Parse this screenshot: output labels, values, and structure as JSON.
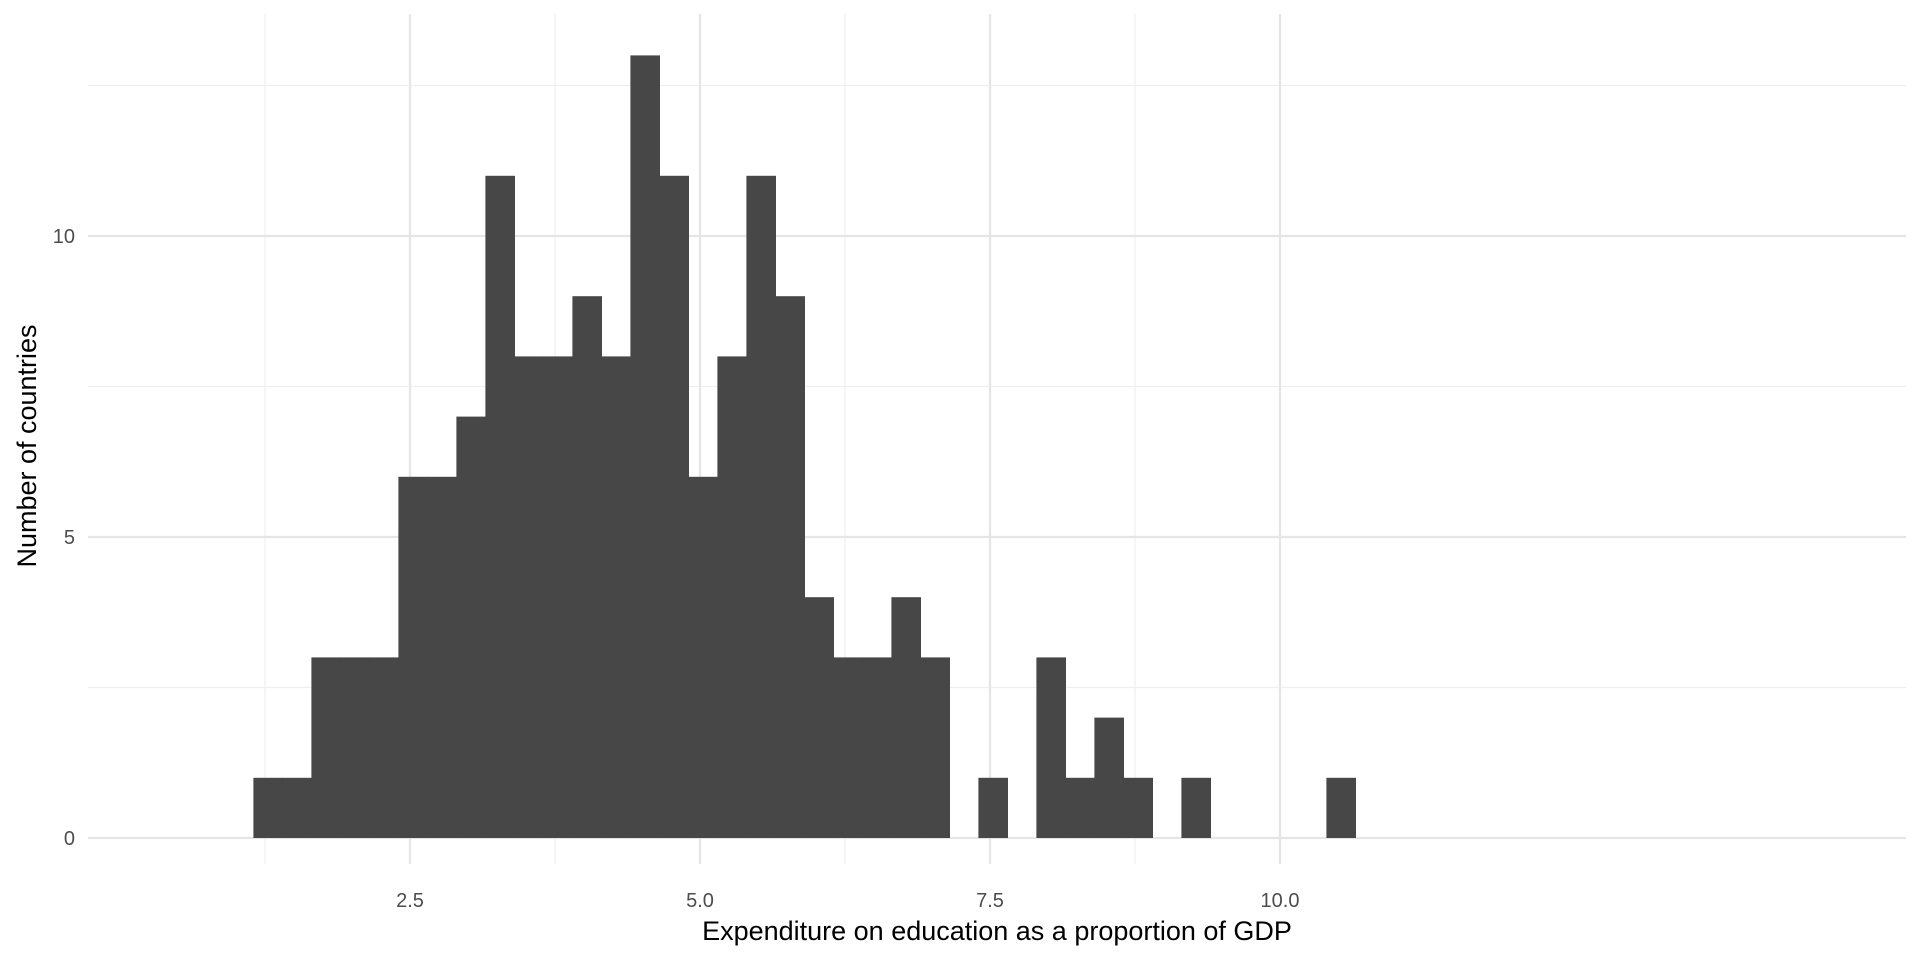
{
  "chart_data": {
    "type": "bar",
    "subtype": "histogram",
    "xlabel": "Expenditure on education as a proportion of GDP",
    "ylabel": "Number of countries",
    "xlim": [
      0.9,
      11.1
    ],
    "ylim": [
      -0.5,
      13.8
    ],
    "x_ticks": [
      2.5,
      5.0,
      7.5,
      10.0
    ],
    "x_tick_labels": [
      "2.5",
      "5.0",
      "7.5",
      "10.0"
    ],
    "y_ticks": [
      0,
      5,
      10
    ],
    "y_tick_labels": [
      "0",
      "5",
      "10"
    ],
    "grid": true,
    "bin_width": 0.25,
    "bins": [
      {
        "x0": 1.15,
        "x1": 1.4,
        "count": 1
      },
      {
        "x0": 1.4,
        "x1": 1.65,
        "count": 1
      },
      {
        "x0": 1.65,
        "x1": 1.9,
        "count": 3
      },
      {
        "x0": 1.9,
        "x1": 2.15,
        "count": 3
      },
      {
        "x0": 2.15,
        "x1": 2.4,
        "count": 3
      },
      {
        "x0": 2.4,
        "x1": 2.65,
        "count": 6
      },
      {
        "x0": 2.65,
        "x1": 2.9,
        "count": 6
      },
      {
        "x0": 2.9,
        "x1": 3.15,
        "count": 7
      },
      {
        "x0": 3.15,
        "x1": 3.4,
        "count": 11
      },
      {
        "x0": 3.4,
        "x1": 3.65,
        "count": 8
      },
      {
        "x0": 3.65,
        "x1": 3.9,
        "count": 8
      },
      {
        "x0": 3.9,
        "x1": 4.15,
        "count": 9
      },
      {
        "x0": 4.15,
        "x1": 4.4,
        "count": 8
      },
      {
        "x0": 4.4,
        "x1": 4.65,
        "count": 13
      },
      {
        "x0": 4.65,
        "x1": 4.9,
        "count": 11
      },
      {
        "x0": 4.9,
        "x1": 5.15,
        "count": 6
      },
      {
        "x0": 5.15,
        "x1": 5.4,
        "count": 8
      },
      {
        "x0": 5.4,
        "x1": 5.65,
        "count": 11
      },
      {
        "x0": 5.65,
        "x1": 5.9,
        "count": 9
      },
      {
        "x0": 5.9,
        "x1": 6.15,
        "count": 4
      },
      {
        "x0": 6.15,
        "x1": 6.4,
        "count": 3
      },
      {
        "x0": 6.4,
        "x1": 6.65,
        "count": 3
      },
      {
        "x0": 6.65,
        "x1": 6.9,
        "count": 4
      },
      {
        "x0": 6.9,
        "x1": 7.15,
        "count": 3
      },
      {
        "x0": 7.15,
        "x1": 7.4,
        "count": 0
      },
      {
        "x0": 7.4,
        "x1": 7.65,
        "count": 1
      },
      {
        "x0": 7.65,
        "x1": 7.9,
        "count": 0
      },
      {
        "x0": 7.9,
        "x1": 8.15,
        "count": 3
      },
      {
        "x0": 8.15,
        "x1": 8.4,
        "count": 1
      },
      {
        "x0": 8.4,
        "x1": 8.65,
        "count": 2
      },
      {
        "x0": 8.65,
        "x1": 8.9,
        "count": 1
      },
      {
        "x0": 8.9,
        "x1": 9.15,
        "count": 0
      },
      {
        "x0": 9.15,
        "x1": 9.4,
        "count": 1
      },
      {
        "x0": 9.4,
        "x1": 9.65,
        "count": 0
      },
      {
        "x0": 9.65,
        "x1": 9.9,
        "count": 0
      },
      {
        "x0": 9.9,
        "x1": 10.15,
        "count": 0
      },
      {
        "x0": 10.15,
        "x1": 10.4,
        "count": 0
      },
      {
        "x0": 10.4,
        "x1": 10.65,
        "count": 1
      }
    ],
    "colors": {
      "bar": "#474747",
      "background": "#ffffff",
      "grid_major": "#e5e5e5",
      "grid_minor": "#efefef"
    }
  }
}
